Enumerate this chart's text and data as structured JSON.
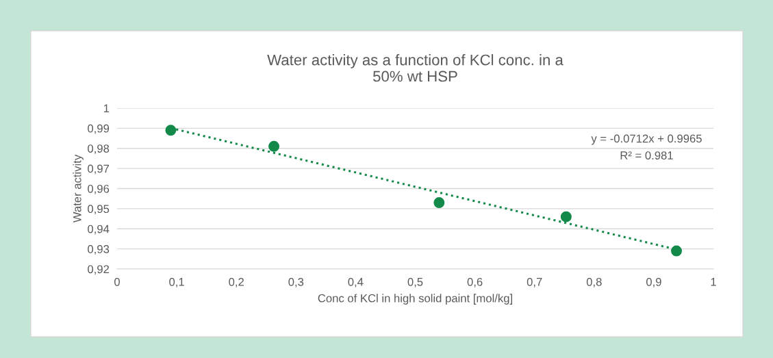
{
  "chart_data": {
    "type": "scatter",
    "title": "Water activity as a function of KCl conc. in a\n50% wt HSP",
    "xlabel": "Conc of KCl in high solid paint [mol/kg]",
    "ylabel": "Water activity",
    "series": [
      {
        "color": "#138a4a",
        "marker": "circle",
        "x": [
          0.09,
          0.263,
          0.54,
          0.753,
          0.938
        ],
        "values": [
          0.989,
          0.981,
          0.953,
          0.946,
          0.929
        ]
      },
      {
        "type": "line",
        "color": "#138a4a",
        "marker": "none",
        "line_style": "dotted",
        "x": [
          0.09,
          0.938
        ],
        "values": [
          0.9901,
          0.9297
        ]
      }
    ],
    "annotations": [
      "y = -0.0712x + 0.9965",
      "R² = 0.981"
    ],
    "xlim": [
      0,
      1
    ],
    "ylim": [
      0.92,
      1
    ],
    "xticks": [
      0,
      {
        "value": 0.1,
        "label": "0,1"
      },
      {
        "value": 0.2,
        "label": "0,2"
      },
      {
        "value": 0.3,
        "label": "0,3"
      },
      {
        "value": 0.4,
        "label": "0,4"
      },
      {
        "value": 0.5,
        "label": "0,5"
      },
      {
        "value": 0.6,
        "label": "0,6"
      },
      {
        "value": 0.7,
        "label": "0,7"
      },
      {
        "value": 0.8,
        "label": "0,8"
      },
      {
        "value": 0.9,
        "label": "0,9"
      },
      1
    ],
    "yticks": [
      {
        "value": 0.92,
        "label": "0,92"
      },
      {
        "value": 0.93,
        "label": "0,93"
      },
      {
        "value": 0.94,
        "label": "0,94"
      },
      {
        "value": 0.95,
        "label": "0,95"
      },
      {
        "value": 0.96,
        "label": "0,96"
      },
      {
        "value": 0.97,
        "label": "0,97"
      },
      {
        "value": 0.98,
        "label": "0,98"
      },
      {
        "value": 0.99,
        "label": "0,99"
      },
      1
    ],
    "grid": "y"
  }
}
